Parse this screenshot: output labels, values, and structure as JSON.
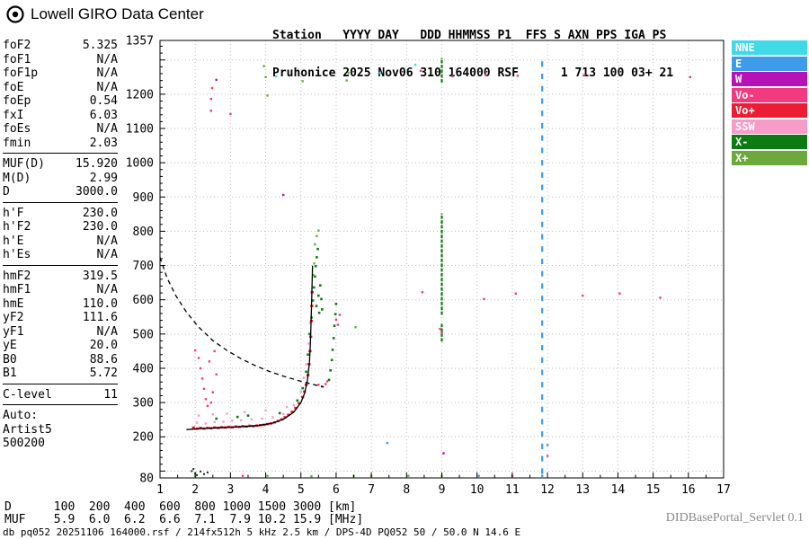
{
  "header": {
    "logo_text": "Lowell GIRO Data Center",
    "station_line1": "Station   YYYY DAY   DDD HHMMSS P1  FFS S AXN PPS IGA PS",
    "station_line2": "Pruhonice 2025 Nov06 310 164000 RSF      1 713 100 03+ 21"
  },
  "params": {
    "groups": [
      {
        "rows": [
          [
            "foF2",
            "5.325"
          ],
          [
            "foF1",
            "N/A"
          ],
          [
            "foF1p",
            "N/A"
          ],
          [
            "foE",
            "N/A"
          ],
          [
            "foEp",
            "0.54"
          ],
          [
            "fxI",
            "6.03"
          ],
          [
            "foEs",
            "N/A"
          ],
          [
            "fmin",
            "2.03"
          ]
        ]
      },
      {
        "rows": [
          [
            "MUF(D)",
            "15.920"
          ],
          [
            "M(D)",
            "2.99"
          ],
          [
            "D",
            "3000.0"
          ]
        ]
      },
      {
        "rows": [
          [
            "h'F",
            "230.0"
          ],
          [
            "h'F2",
            "230.0"
          ],
          [
            "h'E",
            "N/A"
          ],
          [
            "h'Es",
            "N/A"
          ]
        ]
      },
      {
        "rows": [
          [
            "hmF2",
            "319.5"
          ],
          [
            "hmF1",
            "N/A"
          ],
          [
            "hmE",
            "110.0"
          ],
          [
            "yF2",
            "111.6"
          ],
          [
            "yF1",
            "N/A"
          ],
          [
            "yE",
            "20.0"
          ],
          [
            "B0",
            "88.6"
          ],
          [
            "B1",
            "5.72"
          ]
        ]
      },
      {
        "rows": [
          [
            "C-level",
            "11"
          ]
        ]
      }
    ],
    "auto_label": "Auto:",
    "auto_lines": [
      "Artist5",
      "500200"
    ]
  },
  "footer": {
    "d_row": "D      100  200  400  600  800 1000 1500 3000 [km]",
    "muf_row": "MUF    5.9  6.0  6.2  6.6  7.1  7.9 10.2 15.9 [MHz]",
    "servlet": "DIDBasePortal_Servlet 0.1",
    "status": "db pq052 20251106 164000.rsf / 214fx512h 5 kHz 2.5 km / DPS-4D PQ052 50 / 50.0 N 14.6 E"
  },
  "chart_data": {
    "type": "scatter",
    "title": "Digisonde ionogram Pruhonice 2025 Nov06 164000",
    "xlabel": "[MHz]",
    "ylabel": "[km]",
    "xlim": [
      1,
      17
    ],
    "ylim": [
      80,
      1357
    ],
    "x_ticks": [
      1,
      2,
      3,
      4,
      5,
      6,
      7,
      8,
      9,
      10,
      11,
      12,
      13,
      14,
      15,
      16,
      17
    ],
    "y_tick_labels": [
      1357,
      1200,
      1100,
      1000,
      900,
      800,
      700,
      600,
      500,
      400,
      300,
      200,
      80
    ],
    "grid": {
      "x_step": 1,
      "y_step": 100,
      "style": "dotted"
    },
    "legend": {
      "position": "right",
      "items": [
        {
          "label": "NNE",
          "color": "#3FD9E8"
        },
        {
          "label": "E",
          "color": "#3D9BE9"
        },
        {
          "label": "W",
          "color": "#B513B5"
        },
        {
          "label": "Vo-",
          "color": "#F23A7E"
        },
        {
          "label": "Vo+",
          "color": "#EC1C35"
        },
        {
          "label": "SSW",
          "color": "#F79BC8"
        },
        {
          "label": "X-",
          "color": "#0E7A12"
        },
        {
          "label": "X+",
          "color": "#6CA83C"
        }
      ]
    },
    "series": [
      {
        "name": "o-trace-first-hop",
        "color": "#EC1C35",
        "size": [
          3.4,
          2.6
        ],
        "points": [
          [
            1.95,
            227
          ],
          [
            2.05,
            224
          ],
          [
            2.15,
            226
          ],
          [
            2.25,
            224
          ],
          [
            2.35,
            226
          ],
          [
            2.45,
            225
          ],
          [
            2.55,
            227
          ],
          [
            2.65,
            226
          ],
          [
            2.75,
            228
          ],
          [
            2.85,
            227
          ],
          [
            2.95,
            229
          ],
          [
            3.05,
            228
          ],
          [
            3.15,
            230
          ],
          [
            3.25,
            229
          ],
          [
            3.35,
            231
          ],
          [
            3.45,
            230
          ],
          [
            3.55,
            232
          ],
          [
            3.65,
            231
          ],
          [
            3.75,
            233
          ],
          [
            3.85,
            234
          ],
          [
            3.95,
            235
          ],
          [
            4.05,
            237
          ],
          [
            4.15,
            239
          ],
          [
            4.25,
            242
          ],
          [
            4.35,
            246
          ],
          [
            4.45,
            251
          ],
          [
            4.55,
            257
          ],
          [
            4.65,
            264
          ],
          [
            4.75,
            273
          ],
          [
            4.85,
            284
          ],
          [
            4.95,
            298
          ],
          [
            5.05,
            316
          ],
          [
            5.1,
            332
          ],
          [
            5.15,
            352
          ],
          [
            5.2,
            380
          ],
          [
            5.23,
            412
          ],
          [
            5.26,
            450
          ],
          [
            5.28,
            492
          ],
          [
            5.3,
            538
          ],
          [
            5.31,
            582
          ],
          [
            5.32,
            622
          ]
        ]
      },
      {
        "name": "o-trace-spread",
        "color": "#F79BC8",
        "size": [
          2.4,
          2.4
        ],
        "points": [
          [
            2.05,
            241
          ],
          [
            2.3,
            239
          ],
          [
            2.55,
            243
          ],
          [
            2.8,
            244
          ],
          [
            3.05,
            247
          ],
          [
            3.3,
            248
          ],
          [
            3.6,
            251
          ],
          [
            3.9,
            253
          ],
          [
            4.2,
            257
          ],
          [
            4.5,
            267
          ],
          [
            4.8,
            292
          ],
          [
            5.0,
            332
          ],
          [
            5.08,
            372
          ],
          [
            5.16,
            412
          ],
          [
            5.22,
            472
          ],
          [
            5.26,
            532
          ],
          [
            2.1,
            262
          ],
          [
            2.5,
            266
          ],
          [
            2.9,
            268
          ],
          [
            3.4,
            272
          ],
          [
            4.0,
            277
          ],
          [
            4.6,
            287
          ]
        ]
      },
      {
        "name": "oblique-spread-echoes",
        "color": "#F23A7E",
        "size": [
          2.4,
          2.4
        ],
        "points": [
          [
            2.0,
            452
          ],
          [
            2.1,
            430
          ],
          [
            2.15,
            400
          ],
          [
            2.2,
            370
          ],
          [
            2.25,
            340
          ],
          [
            2.3,
            310
          ],
          [
            2.35,
            290
          ],
          [
            2.45,
            300
          ],
          [
            2.5,
            330
          ],
          [
            2.4,
            420
          ],
          [
            2.55,
            450
          ],
          [
            2.6,
            382
          ],
          [
            5.5,
            352
          ],
          [
            5.6,
            347
          ],
          [
            5.7,
            354
          ],
          [
            5.75,
            362
          ],
          [
            6.0,
            542
          ],
          [
            6.05,
            527
          ],
          [
            6.1,
            556
          ],
          [
            8.95,
            515
          ],
          [
            9.0,
            503
          ],
          [
            8.45,
            622
          ],
          [
            10.2,
            602
          ],
          [
            11.1,
            618
          ],
          [
            13.0,
            612
          ],
          [
            14.05,
            618
          ],
          [
            15.2,
            606
          ],
          [
            8.4,
            1268
          ],
          [
            9.3,
            1252
          ],
          [
            10.25,
            1256
          ],
          [
            11.15,
            1254
          ],
          [
            13.05,
            1256
          ],
          [
            16.05,
            1250
          ],
          [
            2.45,
            1152
          ],
          [
            2.45,
            1186
          ],
          [
            2.48,
            1218
          ],
          [
            3.0,
            1142
          ],
          [
            12.0,
            144
          ],
          [
            3.35,
            86
          ],
          [
            11.0,
            86
          ]
        ]
      },
      {
        "name": "x-trace",
        "color": "#0E7A12",
        "size": [
          2.6,
          2.6
        ],
        "points": [
          [
            5.34,
            598
          ],
          [
            5.37,
            636
          ],
          [
            5.4,
            668
          ],
          [
            5.42,
            698
          ],
          [
            5.45,
            724
          ],
          [
            5.48,
            748
          ],
          [
            5.44,
            582
          ],
          [
            5.5,
            612
          ],
          [
            5.55,
            642
          ],
          [
            5.58,
            602
          ],
          [
            5.52,
            562
          ],
          [
            5.6,
            572
          ],
          [
            5.8,
            366
          ],
          [
            5.84,
            394
          ],
          [
            5.88,
            424
          ],
          [
            5.9,
            454
          ],
          [
            5.93,
            488
          ],
          [
            5.95,
            524
          ],
          [
            5.98,
            558
          ],
          [
            6.0,
            588
          ],
          [
            3.2,
            258
          ],
          [
            3.5,
            262
          ],
          [
            2.6,
            253
          ],
          [
            4.4,
            269
          ],
          [
            4.9,
            306
          ],
          [
            5.05,
            342
          ],
          [
            5.15,
            390
          ],
          [
            5.2,
            440
          ],
          [
            5.25,
            500
          ],
          [
            5.3,
            548
          ]
        ]
      },
      {
        "name": "x-trace-spread",
        "color": "#6CA83C",
        "size": [
          2.4,
          2.4
        ],
        "points": [
          [
            5.4,
            762
          ],
          [
            5.45,
            786
          ],
          [
            5.5,
            802
          ],
          [
            5.35,
            672
          ],
          [
            5.38,
            706
          ],
          [
            4.0,
            1250
          ],
          [
            4.05,
            1196
          ],
          [
            6.3,
            1240
          ],
          [
            6.35,
            1262
          ],
          [
            5.05,
            1238
          ],
          [
            3.95,
            1282
          ],
          [
            9.0,
            86
          ],
          [
            8.05,
            86
          ],
          [
            6.5,
            86
          ],
          [
            5.3,
            85
          ],
          [
            2.0,
            86
          ],
          [
            4.05,
            86
          ],
          [
            6.55,
            520
          ],
          [
            7.0,
            86
          ]
        ]
      },
      {
        "name": "e-direction-echoes",
        "color": "#3D9BE9",
        "size": [
          2.4,
          2.4
        ],
        "points": [
          [
            7.45,
            182
          ],
          [
            10.05,
            86
          ],
          [
            12.0,
            176
          ],
          [
            11.85,
            86
          ]
        ]
      },
      {
        "name": "nne-direction-echoes",
        "color": "#3FD9E8",
        "size": [
          2.4,
          2.4
        ],
        "points": [
          [
            7.25,
            1262
          ],
          [
            4.3,
            1252
          ],
          [
            8.25,
            1286
          ]
        ]
      },
      {
        "name": "w-direction-echoes",
        "color": "#B513B5",
        "size": [
          2.4,
          2.4
        ],
        "points": [
          [
            4.5,
            906
          ],
          [
            2.6,
            1242
          ],
          [
            9.05,
            152
          ]
        ]
      },
      {
        "name": "e-region-noise",
        "color": "#222222",
        "size": [
          2,
          2
        ],
        "points": [
          [
            1.9,
            100
          ],
          [
            1.95,
            106
          ],
          [
            2.0,
            94
          ],
          [
            2.05,
            88
          ],
          [
            2.15,
            99
          ],
          [
            2.25,
            91
          ],
          [
            2.35,
            96
          ]
        ]
      }
    ],
    "bands": [
      {
        "name": "rfi-band-9.0MHz",
        "f": 9.0,
        "color": "#0E7A12",
        "dash_km": 10,
        "gap_km": 4,
        "segments": [
          [
            478,
            532
          ],
          [
            556,
            852
          ],
          [
            1234,
            1306
          ]
        ]
      },
      {
        "name": "rfi-band-11.85MHz",
        "f": 11.85,
        "color": "#3D9BE9",
        "dash_km": 16,
        "gap_km": 20,
        "segments": [
          [
            92,
            1312
          ]
        ]
      }
    ],
    "curves": [
      {
        "name": "artist-o-trace-fit",
        "style": "solid",
        "color": "#000000",
        "points": [
          [
            1.75,
            221
          ],
          [
            2.2,
            224
          ],
          [
            2.6,
            226
          ],
          [
            3.0,
            228
          ],
          [
            3.4,
            230
          ],
          [
            3.8,
            233
          ],
          [
            4.2,
            240
          ],
          [
            4.5,
            251
          ],
          [
            4.8,
            272
          ],
          [
            5.0,
            300
          ],
          [
            5.1,
            326
          ],
          [
            5.18,
            362
          ],
          [
            5.24,
            415
          ],
          [
            5.27,
            472
          ],
          [
            5.29,
            540
          ],
          [
            5.31,
            616
          ],
          [
            5.33,
            700
          ]
        ]
      },
      {
        "name": "muf-transmission-curve",
        "style": "dashed",
        "color": "#000000",
        "points": [
          [
            1.0,
            724
          ],
          [
            1.2,
            664
          ],
          [
            1.45,
            612
          ],
          [
            1.75,
            564
          ],
          [
            2.1,
            520
          ],
          [
            2.5,
            481
          ],
          [
            2.9,
            452
          ],
          [
            3.3,
            428
          ],
          [
            3.7,
            408
          ],
          [
            4.1,
            391
          ],
          [
            4.5,
            377
          ],
          [
            4.9,
            365
          ],
          [
            5.3,
            354
          ],
          [
            5.65,
            345
          ]
        ]
      }
    ]
  }
}
